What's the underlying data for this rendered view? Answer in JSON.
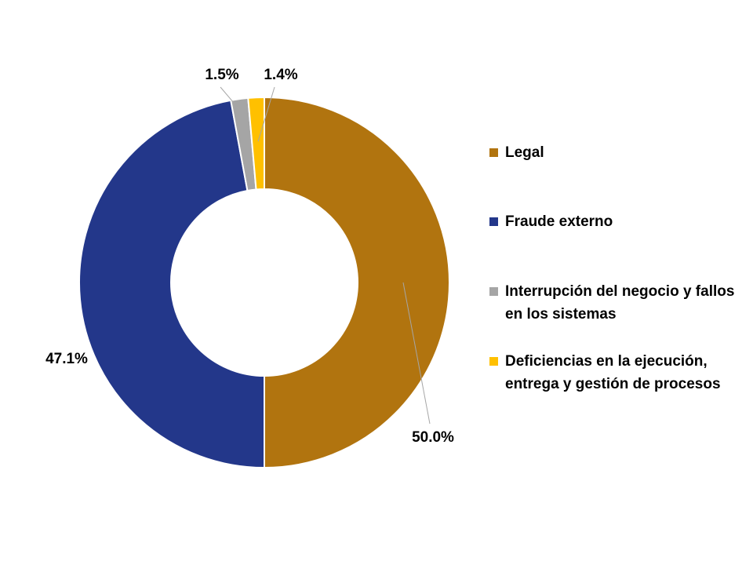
{
  "chart_data": {
    "type": "pie",
    "donut": true,
    "title": "",
    "legend_position": "right",
    "slices": [
      {
        "name": "Legal",
        "value": 50.0,
        "label": "50.0%",
        "color": "#B1740F"
      },
      {
        "name": "Fraude externo",
        "value": 47.1,
        "label": "47.1%",
        "color": "#23378A"
      },
      {
        "name": "Interrupción del negocio y fallos en los sistemas",
        "value": 1.5,
        "label": "1.5%",
        "color": "#A5A5A5"
      },
      {
        "name": "Deficiencias en la ejecución, entrega y gestión de procesos",
        "value": 1.4,
        "label": "1.4%",
        "color": "#FFC000"
      }
    ]
  }
}
